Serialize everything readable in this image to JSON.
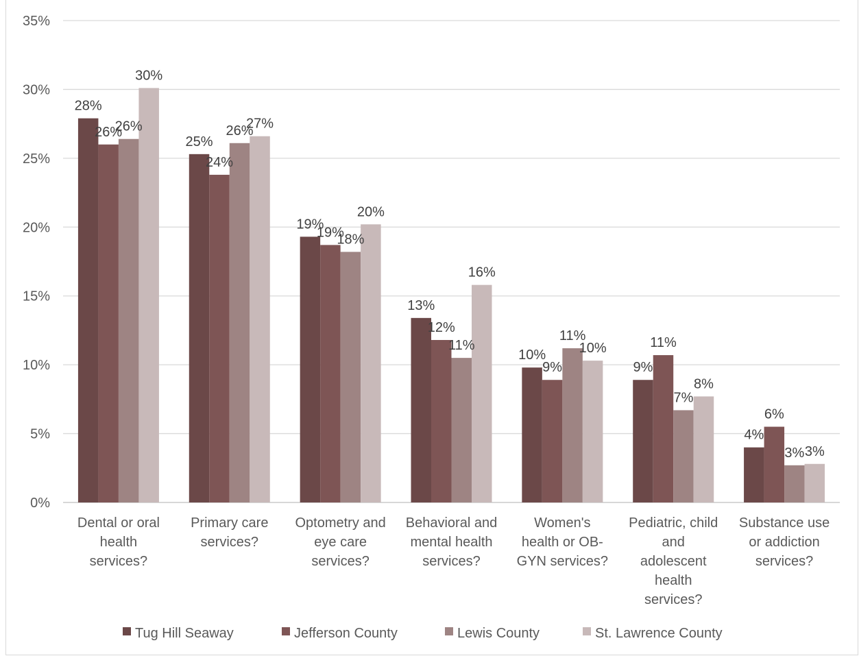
{
  "chart_data": {
    "type": "bar",
    "categories": [
      "Dental or oral health services?",
      "Primary care services?",
      "Optometry and eye care services?",
      "Behavioral and mental health services?",
      "Women's health or OB-GYN services?",
      "Pediatric, child and adolescent health services?",
      "Substance use or addiction services?"
    ],
    "category_lines": [
      [
        "Dental or oral",
        "health",
        "services?"
      ],
      [
        "Primary care",
        "services?"
      ],
      [
        "Optometry and",
        "eye care",
        "services?"
      ],
      [
        "Behavioral and",
        "mental health",
        "services?"
      ],
      [
        "Women's",
        "health or OB-",
        "GYN services?"
      ],
      [
        "Pediatric, child",
        "and",
        "adolescent",
        "health",
        "services?"
      ],
      [
        "Substance use",
        "or addiction",
        "services?"
      ]
    ],
    "series": [
      {
        "name": "Tug Hill Seaway",
        "color": "#6b4848",
        "values": [
          27.9,
          25.3,
          19.3,
          13.4,
          9.8,
          8.9,
          4.0
        ],
        "labels": [
          "28%",
          "25%",
          "19%",
          "13%",
          "10%",
          "9%",
          "4%"
        ]
      },
      {
        "name": "Jefferson County",
        "color": "#7e5555",
        "values": [
          26.0,
          23.8,
          18.7,
          11.8,
          8.9,
          10.7,
          5.5
        ],
        "labels": [
          "26%",
          "24%",
          "19%",
          "12%",
          "9%",
          "11%",
          "6%"
        ]
      },
      {
        "name": "Lewis County",
        "color": "#9e8483",
        "values": [
          26.4,
          26.1,
          18.2,
          10.5,
          11.2,
          6.7,
          2.7
        ],
        "labels": [
          "26%",
          "26%",
          "18%",
          "11%",
          "11%",
          "7%",
          "3%"
        ]
      },
      {
        "name": "St. Lawrence County",
        "color": "#c8b9b9",
        "values": [
          30.1,
          26.6,
          20.2,
          15.8,
          10.3,
          7.7,
          2.8
        ],
        "labels": [
          "30%",
          "27%",
          "20%",
          "16%",
          "10%",
          "8%",
          "3%"
        ]
      }
    ],
    "y_ticks": [
      "0%",
      "5%",
      "10%",
      "15%",
      "20%",
      "25%",
      "30%",
      "35%"
    ],
    "ylim": [
      0,
      35
    ],
    "grid": true,
    "gridline_color": "#d9d9d9",
    "legend_position": "bottom"
  }
}
